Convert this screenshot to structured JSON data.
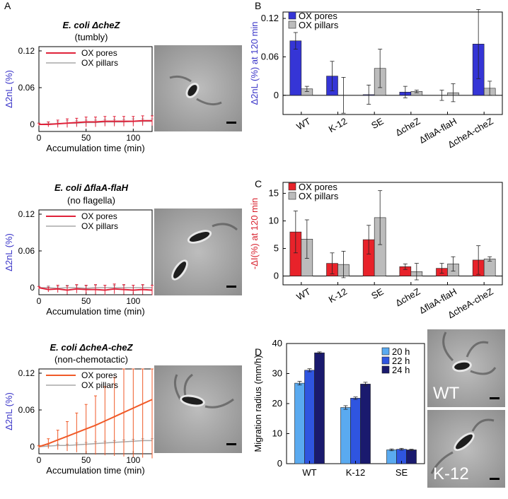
{
  "colors": {
    "pores_red": "#e0223a",
    "pillars_gray": "#a8a8a8",
    "dcheA_orange": "#f05a28",
    "ylabel_blue": "#3a35c8",
    "ylabel_red": "#d8232f",
    "bar_blue": "#3535d6",
    "bar_gray": "#bcbcbc",
    "bar_red": "#e8222a",
    "d20": "#5aaaf0",
    "d22": "#2f55e0",
    "d24": "#1a1a6e"
  },
  "panel_labels": [
    "A",
    "B",
    "C",
    "D"
  ],
  "micrographs": [
    {
      "label": "",
      "scalebar": true
    },
    {
      "label": "",
      "scalebar": true
    },
    {
      "label": "",
      "scalebar": true
    },
    {
      "label": "WT",
      "scalebar": true
    },
    {
      "label": "K-12",
      "scalebar": true
    }
  ],
  "chart_data": [
    {
      "type": "line",
      "panel": "A1",
      "title": "E. coli ΔcheZ",
      "subtitle": "(tumbly)",
      "xlabel": "Accumulation time (min)",
      "ylabel": "Δ2nL (%)",
      "xlim": [
        0,
        120
      ],
      "ylim": [
        0,
        0.12
      ],
      "xticks": [
        0,
        50,
        100
      ],
      "yticks": [
        0,
        0.06,
        0.12
      ],
      "ytick_labels": [
        "0",
        "0.06",
        "0.12"
      ],
      "legend": [
        "OX pores",
        "OX pillars"
      ],
      "x": [
        0,
        10,
        20,
        30,
        40,
        50,
        60,
        70,
        80,
        90,
        100,
        110,
        120
      ],
      "series": [
        {
          "name": "OX pores",
          "values": [
            0,
            0,
            0.001,
            0.002,
            0.003,
            0.004,
            0.004,
            0.005,
            0.005,
            0.005,
            0.005,
            0.006,
            0.006
          ],
          "err": [
            0.002,
            0.004,
            0.006,
            0.007,
            0.007,
            0.008,
            0.008,
            0.008,
            0.008,
            0.008,
            0.008,
            0.008,
            0.008
          ]
        },
        {
          "name": "OX pillars",
          "values": [
            0,
            0.001,
            0.001,
            0.002,
            0.002,
            0.003,
            0.003,
            0.004,
            0.004,
            0.004,
            0.005,
            0.005,
            0.005
          ],
          "err": [
            0.002,
            0.003,
            0.003,
            0.004,
            0.004,
            0.004,
            0.004,
            0.004,
            0.004,
            0.004,
            0.004,
            0.004,
            0.004
          ]
        }
      ]
    },
    {
      "type": "line",
      "panel": "A2",
      "title": "E. coli ΔflaA-flaH",
      "subtitle": "(no flagella)",
      "xlabel": "Accumulation time (min)",
      "ylabel": "Δ2nL (%)",
      "xlim": [
        0,
        120
      ],
      "ylim": [
        0,
        0.12
      ],
      "xticks": [
        0,
        50,
        100
      ],
      "yticks": [
        0,
        0.06,
        0.12
      ],
      "ytick_labels": [
        "0",
        "0.06",
        "0.12"
      ],
      "legend": [
        "OX pores",
        "OX pillars"
      ],
      "x": [
        0,
        10,
        20,
        30,
        40,
        50,
        60,
        70,
        80,
        90,
        100,
        110,
        120
      ],
      "series": [
        {
          "name": "OX pores",
          "values": [
            0,
            -0.003,
            -0.002,
            -0.004,
            -0.002,
            -0.003,
            -0.003,
            -0.004,
            -0.002,
            -0.003,
            -0.004,
            -0.003,
            -0.004
          ],
          "err": [
            0.002,
            0.004,
            0.006,
            0.007,
            0.007,
            0.007,
            0.008,
            0.008,
            0.008,
            0.008,
            0.008,
            0.008,
            0.008
          ]
        },
        {
          "name": "OX pillars",
          "values": [
            0,
            0,
            -0.001,
            0,
            0,
            -0.001,
            0,
            0,
            0,
            0,
            0,
            0,
            0
          ],
          "err": [
            0.002,
            0.003,
            0.003,
            0.004,
            0.004,
            0.004,
            0.004,
            0.004,
            0.004,
            0.004,
            0.004,
            0.004,
            0.004
          ]
        }
      ]
    },
    {
      "type": "line",
      "panel": "A3",
      "title": "E. coli ΔcheA-cheZ",
      "subtitle": "(non-chemotactic)",
      "xlabel": "Accumulation time (min)",
      "ylabel": "Δ2nL (%)",
      "xlim": [
        0,
        120
      ],
      "ylim": [
        0,
        0.12
      ],
      "xticks": [
        0,
        50,
        100
      ],
      "yticks": [
        0,
        0.06,
        0.12
      ],
      "ytick_labels": [
        "0",
        "0.06",
        "0.12"
      ],
      "legend": [
        "OX pores",
        "OX pillars"
      ],
      "x": [
        0,
        10,
        20,
        30,
        40,
        50,
        60,
        70,
        80,
        90,
        100,
        110,
        120
      ],
      "series": [
        {
          "name": "OX pores",
          "values": [
            0,
            0.005,
            0.011,
            0.017,
            0.023,
            0.029,
            0.035,
            0.042,
            0.049,
            0.056,
            0.063,
            0.07,
            0.077
          ],
          "err": [
            0.002,
            0.008,
            0.016,
            0.024,
            0.032,
            0.04,
            0.048,
            0.056,
            0.064,
            0.072,
            0.08,
            0.088,
            0.096
          ]
        },
        {
          "name": "OX pillars",
          "values": [
            0,
            0.001,
            0.002,
            0.002,
            0.003,
            0.004,
            0.005,
            0.006,
            0.007,
            0.008,
            0.009,
            0.01,
            0.01
          ],
          "err": [
            0.001,
            0.002,
            0.002,
            0.002,
            0.003,
            0.003,
            0.003,
            0.003,
            0.003,
            0.003,
            0.003,
            0.003,
            0.003
          ]
        }
      ]
    },
    {
      "type": "bar",
      "panel": "B",
      "ylabel": "Δ2nL (%) at 120 min",
      "categories": [
        "WT",
        "K-12",
        "SE",
        "ΔcheZ",
        "ΔflaA-flaH",
        "ΔcheA-cheZ"
      ],
      "ylim": [
        -0.03,
        0.13
      ],
      "yticks": [
        0,
        0.06,
        0.12
      ],
      "ytick_labels": [
        "0",
        "0.06",
        "0.12"
      ],
      "legend": [
        "OX pores",
        "OX pillars"
      ],
      "series": [
        {
          "name": "OX pores",
          "values": [
            0.085,
            0.03,
            0.001,
            0.005,
            0.0,
            0.08
          ],
          "err": [
            0.013,
            0.023,
            0.015,
            0.009,
            0.008,
            0.054
          ]
        },
        {
          "name": "OX pillars",
          "values": [
            0.01,
            0.0,
            0.042,
            0.006,
            0.004,
            0.011
          ],
          "err": [
            0.004,
            0.028,
            0.03,
            0.002,
            0.014,
            0.011
          ]
        }
      ]
    },
    {
      "type": "bar",
      "panel": "C",
      "ylabel": "-ΔI(%) at 120 min",
      "categories": [
        "WT",
        "K-12",
        "SE",
        "ΔcheZ",
        "ΔflaA-flaH",
        "ΔcheA-cheZ"
      ],
      "ylim": [
        -1.6,
        17
      ],
      "yticks": [
        0,
        5,
        10,
        15
      ],
      "ytick_labels": [
        "0",
        "5",
        "10",
        "15"
      ],
      "legend": [
        "OX pores",
        "OX pillars"
      ],
      "series": [
        {
          "name": "OX pores",
          "values": [
            8.0,
            2.3,
            6.6,
            1.7,
            1.4,
            2.9
          ],
          "err": [
            3.8,
            1.9,
            2.6,
            0.5,
            0.9,
            2.6
          ]
        },
        {
          "name": "OX pillars",
          "values": [
            6.7,
            2.1,
            10.6,
            0.8,
            2.2,
            3.1
          ],
          "err": [
            3.5,
            2.4,
            4.9,
            1.5,
            1.3,
            0.4
          ]
        }
      ]
    },
    {
      "type": "bar",
      "panel": "D",
      "ylabel": "Migration radius (mm/h)",
      "categories": [
        "WT",
        "K-12",
        "SE"
      ],
      "ylim": [
        0,
        40
      ],
      "yticks": [
        0,
        10,
        20,
        30,
        40
      ],
      "ytick_labels": [
        "0",
        "10",
        "20",
        "30",
        "40"
      ],
      "legend": [
        "20 h",
        "22 h",
        "24 h"
      ],
      "series": [
        {
          "name": "20 h",
          "values": [
            26.8,
            18.7,
            4.6
          ],
          "err": [
            0.6,
            0.6,
            0.3
          ]
        },
        {
          "name": "22 h",
          "values": [
            31.1,
            21.8,
            4.8
          ],
          "err": [
            0.5,
            0.4,
            0.3
          ]
        },
        {
          "name": "24 h",
          "values": [
            36.9,
            26.5,
            4.6
          ],
          "err": [
            0.3,
            0.6,
            0.2
          ]
        }
      ]
    }
  ]
}
